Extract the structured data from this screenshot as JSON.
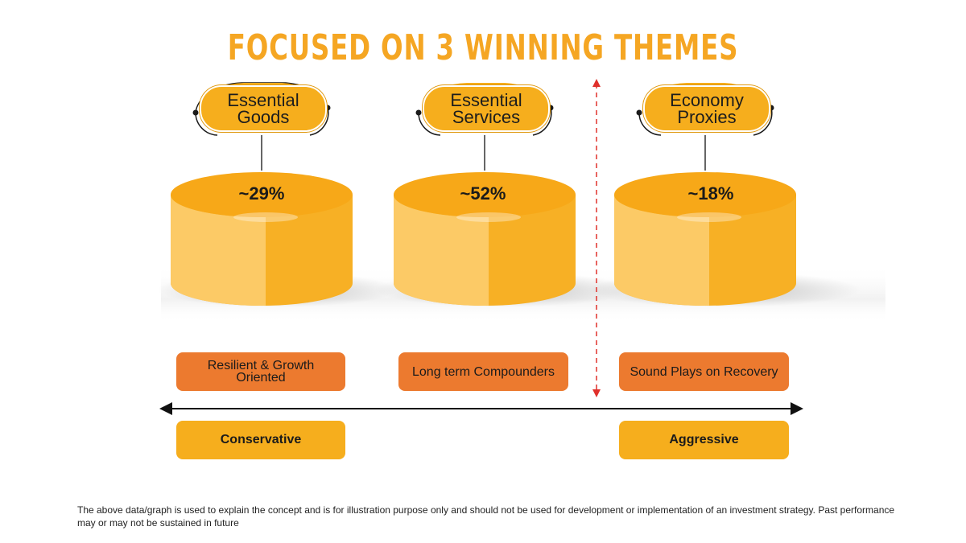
{
  "title": "FOCUSED ON 3 WINNING THEMES",
  "themes": [
    {
      "label_line1": "Essential",
      "label_line2": "Goods",
      "share": "~29%",
      "description": "Resilient & Growth Oriented"
    },
    {
      "label_line1": "Essential",
      "label_line2": "Services",
      "share": "~52%",
      "description": "Long term Compounders"
    },
    {
      "label_line1": "Economy",
      "label_line2": "Proxies",
      "share": "~18%",
      "description": "Sound Plays on Recovery"
    }
  ],
  "risk_scale": {
    "left_label": "Conservative",
    "right_label": "Aggressive"
  },
  "footnote": "The above data/graph is used to explain the concept and is for illustration purpose only and should not be used for development or implementation of an investment strategy. Past performance may or may not be sustained in future",
  "colors": {
    "accent_yellow": "#f6ae1d",
    "title_yellow": "#f5a623",
    "orange": "#ec7a2f",
    "divider_red": "#e0302b"
  }
}
